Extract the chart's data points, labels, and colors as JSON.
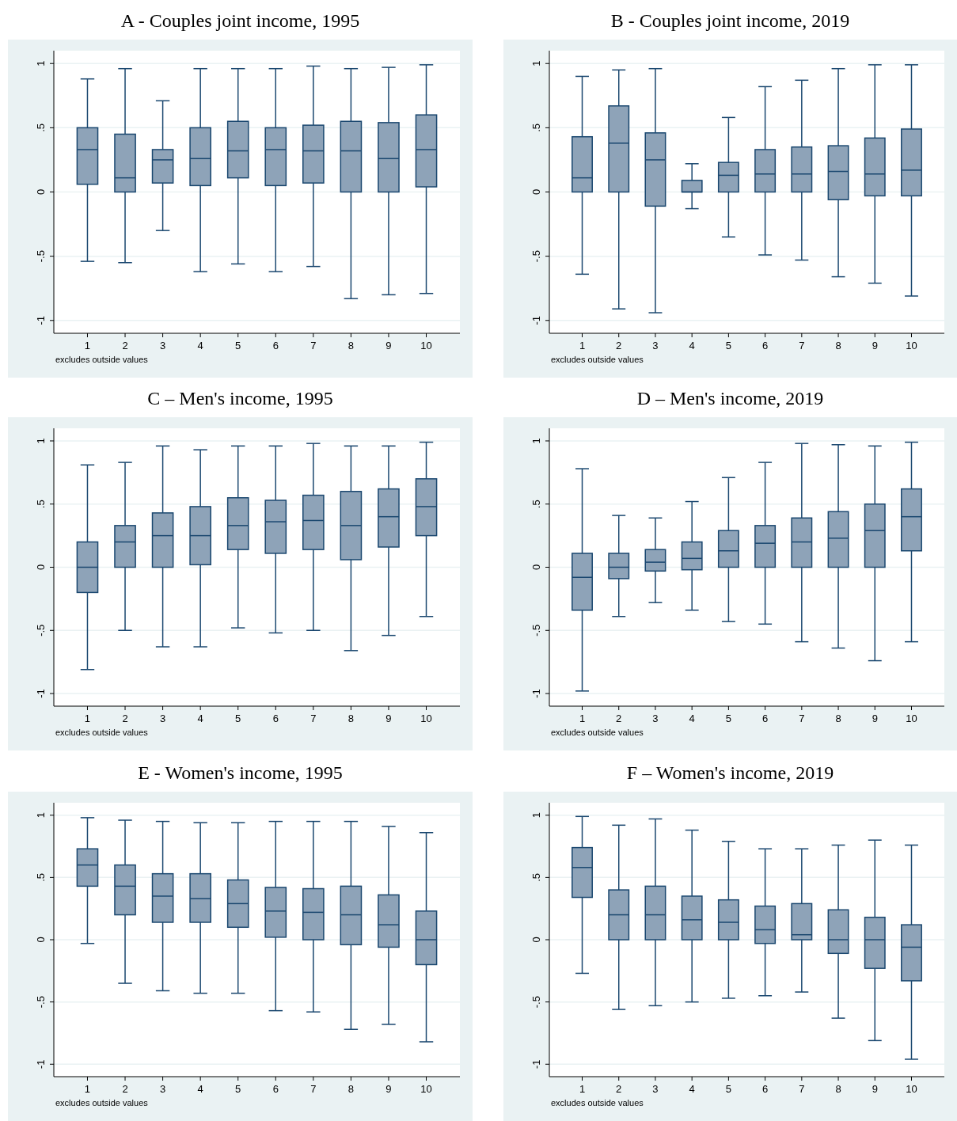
{
  "chart_data": [
    {
      "type": "box",
      "title": "A - Couples joint income, 1995",
      "categories": [
        "1",
        "2",
        "3",
        "4",
        "5",
        "6",
        "7",
        "8",
        "9",
        "10"
      ],
      "ylim": [
        -1.1,
        1.1
      ],
      "yticks": [
        {
          "value": -1,
          "label": "-1"
        },
        {
          "value": -0.5,
          "label": "-.5"
        },
        {
          "value": 0,
          "label": "0"
        },
        {
          "value": 0.5,
          "label": ".5"
        },
        {
          "value": 1,
          "label": "1"
        }
      ],
      "grid": "y",
      "annotations": [
        "excludes outside values"
      ],
      "series": [
        {
          "color": "#8ea3b8",
          "boxes": [
            {
              "low": -0.54,
              "q1": 0.06,
              "median": 0.33,
              "q3": 0.5,
              "high": 0.88
            },
            {
              "low": -0.55,
              "q1": 0,
              "median": 0.11,
              "q3": 0.45,
              "high": 0.96
            },
            {
              "low": -0.3,
              "q1": 0.07,
              "median": 0.25,
              "q3": 0.33,
              "high": 0.71
            },
            {
              "low": -0.62,
              "q1": 0.05,
              "median": 0.26,
              "q3": 0.5,
              "high": 0.96
            },
            {
              "low": -0.56,
              "q1": 0.11,
              "median": 0.32,
              "q3": 0.55,
              "high": 0.96
            },
            {
              "low": -0.62,
              "q1": 0.05,
              "median": 0.33,
              "q3": 0.5,
              "high": 0.96
            },
            {
              "low": -0.58,
              "q1": 0.07,
              "median": 0.32,
              "q3": 0.52,
              "high": 0.98
            },
            {
              "low": -0.83,
              "q1": 0,
              "median": 0.32,
              "q3": 0.55,
              "high": 0.96
            },
            {
              "low": -0.8,
              "q1": 0,
              "median": 0.26,
              "q3": 0.54,
              "high": 0.97
            },
            {
              "low": -0.79,
              "q1": 0.04,
              "median": 0.33,
              "q3": 0.6,
              "high": 0.99
            }
          ]
        }
      ]
    },
    {
      "type": "box",
      "title": "B - Couples joint income, 2019",
      "categories": [
        "1",
        "2",
        "3",
        "4",
        "5",
        "6",
        "7",
        "8",
        "9",
        "10"
      ],
      "ylim": [
        -1.1,
        1.1
      ],
      "yticks": [
        {
          "value": -1,
          "label": "-1"
        },
        {
          "value": -0.5,
          "label": "-.5"
        },
        {
          "value": 0,
          "label": "0"
        },
        {
          "value": 0.5,
          "label": ".5"
        },
        {
          "value": 1,
          "label": "1"
        }
      ],
      "grid": "y",
      "annotations": [
        "excludes outside values"
      ],
      "series": [
        {
          "color": "#8ea3b8",
          "boxes": [
            {
              "low": -0.64,
              "q1": 0,
              "median": 0.11,
              "q3": 0.43,
              "high": 0.9
            },
            {
              "low": -0.91,
              "q1": 0,
              "median": 0.38,
              "q3": 0.67,
              "high": 0.95
            },
            {
              "low": -0.94,
              "q1": -0.11,
              "median": 0.25,
              "q3": 0.46,
              "high": 0.96
            },
            {
              "low": -0.13,
              "q1": 0,
              "median": 0,
              "q3": 0.09,
              "high": 0.22
            },
            {
              "low": -0.35,
              "q1": 0,
              "median": 0.13,
              "q3": 0.23,
              "high": 0.58
            },
            {
              "low": -0.49,
              "q1": 0,
              "median": 0.14,
              "q3": 0.33,
              "high": 0.82
            },
            {
              "low": -0.53,
              "q1": 0,
              "median": 0.14,
              "q3": 0.35,
              "high": 0.87
            },
            {
              "low": -0.66,
              "q1": -0.06,
              "median": 0.16,
              "q3": 0.36,
              "high": 0.96
            },
            {
              "low": -0.71,
              "q1": -0.03,
              "median": 0.14,
              "q3": 0.42,
              "high": 0.99
            },
            {
              "low": -0.81,
              "q1": -0.03,
              "median": 0.17,
              "q3": 0.49,
              "high": 0.99
            }
          ]
        }
      ]
    },
    {
      "type": "box",
      "title": "C – Men's income, 1995",
      "categories": [
        "1",
        "2",
        "3",
        "4",
        "5",
        "6",
        "7",
        "8",
        "9",
        "10"
      ],
      "ylim": [
        -1.1,
        1.1
      ],
      "yticks": [
        {
          "value": -1,
          "label": "-1"
        },
        {
          "value": -0.5,
          "label": "-.5"
        },
        {
          "value": 0,
          "label": "0"
        },
        {
          "value": 0.5,
          "label": ".5"
        },
        {
          "value": 1,
          "label": "1"
        }
      ],
      "grid": "y",
      "annotations": [
        "excludes outside values"
      ],
      "series": [
        {
          "color": "#8ea3b8",
          "boxes": [
            {
              "low": -0.81,
              "q1": -0.2,
              "median": 0,
              "q3": 0.2,
              "high": 0.81
            },
            {
              "low": -0.5,
              "q1": 0,
              "median": 0.2,
              "q3": 0.33,
              "high": 0.83
            },
            {
              "low": -0.63,
              "q1": 0,
              "median": 0.25,
              "q3": 0.43,
              "high": 0.96
            },
            {
              "low": -0.63,
              "q1": 0.02,
              "median": 0.25,
              "q3": 0.48,
              "high": 0.93
            },
            {
              "low": -0.48,
              "q1": 0.14,
              "median": 0.33,
              "q3": 0.55,
              "high": 0.96
            },
            {
              "low": -0.52,
              "q1": 0.11,
              "median": 0.36,
              "q3": 0.53,
              "high": 0.96
            },
            {
              "low": -0.5,
              "q1": 0.14,
              "median": 0.37,
              "q3": 0.57,
              "high": 0.98
            },
            {
              "low": -0.66,
              "q1": 0.06,
              "median": 0.33,
              "q3": 0.6,
              "high": 0.96
            },
            {
              "low": -0.54,
              "q1": 0.16,
              "median": 0.4,
              "q3": 0.62,
              "high": 0.96
            },
            {
              "low": -0.39,
              "q1": 0.25,
              "median": 0.48,
              "q3": 0.7,
              "high": 0.99
            }
          ]
        }
      ]
    },
    {
      "type": "box",
      "title": "D – Men's income, 2019",
      "categories": [
        "1",
        "2",
        "3",
        "4",
        "5",
        "6",
        "7",
        "8",
        "9",
        "10"
      ],
      "ylim": [
        -1.1,
        1.1
      ],
      "yticks": [
        {
          "value": -1,
          "label": "-1"
        },
        {
          "value": -0.5,
          "label": "-.5"
        },
        {
          "value": 0,
          "label": "0"
        },
        {
          "value": 0.5,
          "label": ".5"
        },
        {
          "value": 1,
          "label": "1"
        }
      ],
      "grid": "y",
      "annotations": [
        "excludes outside values"
      ],
      "series": [
        {
          "color": "#8ea3b8",
          "boxes": [
            {
              "low": -0.98,
              "q1": -0.34,
              "median": -0.08,
              "q3": 0.11,
              "high": 0.78
            },
            {
              "low": -0.39,
              "q1": -0.09,
              "median": 0,
              "q3": 0.11,
              "high": 0.41
            },
            {
              "low": -0.28,
              "q1": -0.03,
              "median": 0.04,
              "q3": 0.14,
              "high": 0.39
            },
            {
              "low": -0.34,
              "q1": -0.02,
              "median": 0.07,
              "q3": 0.2,
              "high": 0.52
            },
            {
              "low": -0.43,
              "q1": 0,
              "median": 0.13,
              "q3": 0.29,
              "high": 0.71
            },
            {
              "low": -0.45,
              "q1": 0,
              "median": 0.19,
              "q3": 0.33,
              "high": 0.83
            },
            {
              "low": -0.59,
              "q1": 0,
              "median": 0.2,
              "q3": 0.39,
              "high": 0.98
            },
            {
              "low": -0.64,
              "q1": 0,
              "median": 0.23,
              "q3": 0.44,
              "high": 0.97
            },
            {
              "low": -0.74,
              "q1": 0,
              "median": 0.29,
              "q3": 0.5,
              "high": 0.96
            },
            {
              "low": -0.59,
              "q1": 0.13,
              "median": 0.4,
              "q3": 0.62,
              "high": 0.99
            }
          ]
        }
      ]
    },
    {
      "type": "box",
      "title": "E - Women's income, 1995",
      "categories": [
        "1",
        "2",
        "3",
        "4",
        "5",
        "6",
        "7",
        "8",
        "9",
        "10"
      ],
      "ylim": [
        -1.1,
        1.1
      ],
      "yticks": [
        {
          "value": -1,
          "label": "-1"
        },
        {
          "value": -0.5,
          "label": "-.5"
        },
        {
          "value": 0,
          "label": "0"
        },
        {
          "value": 0.5,
          "label": ".5"
        },
        {
          "value": 1,
          "label": "1"
        }
      ],
      "grid": "y",
      "annotations": [
        "excludes outside values"
      ],
      "series": [
        {
          "color": "#8ea3b8",
          "boxes": [
            {
              "low": -0.03,
              "q1": 0.43,
              "median": 0.6,
              "q3": 0.73,
              "high": 0.98
            },
            {
              "low": -0.35,
              "q1": 0.2,
              "median": 0.43,
              "q3": 0.6,
              "high": 0.96
            },
            {
              "low": -0.41,
              "q1": 0.14,
              "median": 0.35,
              "q3": 0.53,
              "high": 0.95
            },
            {
              "low": -0.43,
              "q1": 0.14,
              "median": 0.33,
              "q3": 0.53,
              "high": 0.94
            },
            {
              "low": -0.43,
              "q1": 0.1,
              "median": 0.29,
              "q3": 0.48,
              "high": 0.94
            },
            {
              "low": -0.57,
              "q1": 0.02,
              "median": 0.23,
              "q3": 0.42,
              "high": 0.95
            },
            {
              "low": -0.58,
              "q1": 0,
              "median": 0.22,
              "q3": 0.41,
              "high": 0.95
            },
            {
              "low": -0.72,
              "q1": -0.04,
              "median": 0.2,
              "q3": 0.43,
              "high": 0.95
            },
            {
              "low": -0.68,
              "q1": -0.06,
              "median": 0.12,
              "q3": 0.36,
              "high": 0.91
            },
            {
              "low": -0.82,
              "q1": -0.2,
              "median": 0,
              "q3": 0.23,
              "high": 0.86
            }
          ]
        }
      ]
    },
    {
      "type": "box",
      "title": "F – Women's income, 2019",
      "categories": [
        "1",
        "2",
        "3",
        "4",
        "5",
        "6",
        "7",
        "8",
        "9",
        "10"
      ],
      "ylim": [
        -1.1,
        1.1
      ],
      "yticks": [
        {
          "value": -1,
          "label": "-1"
        },
        {
          "value": -0.5,
          "label": "-.5"
        },
        {
          "value": 0,
          "label": "0"
        },
        {
          "value": 0.5,
          "label": ".5"
        },
        {
          "value": 1,
          "label": "1"
        }
      ],
      "grid": "y",
      "annotations": [
        "excludes outside values"
      ],
      "series": [
        {
          "color": "#8ea3b8",
          "boxes": [
            {
              "low": -0.27,
              "q1": 0.34,
              "median": 0.58,
              "q3": 0.74,
              "high": 0.99
            },
            {
              "low": -0.56,
              "q1": 0,
              "median": 0.2,
              "q3": 0.4,
              "high": 0.92
            },
            {
              "low": -0.53,
              "q1": 0,
              "median": 0.2,
              "q3": 0.43,
              "high": 0.97
            },
            {
              "low": -0.5,
              "q1": 0,
              "median": 0.16,
              "q3": 0.35,
              "high": 0.88
            },
            {
              "low": -0.47,
              "q1": 0,
              "median": 0.14,
              "q3": 0.32,
              "high": 0.79
            },
            {
              "low": -0.45,
              "q1": -0.03,
              "median": 0.08,
              "q3": 0.27,
              "high": 0.73
            },
            {
              "low": -0.42,
              "q1": 0,
              "median": 0.04,
              "q3": 0.29,
              "high": 0.73
            },
            {
              "low": -0.63,
              "q1": -0.11,
              "median": 0,
              "q3": 0.24,
              "high": 0.76
            },
            {
              "low": -0.81,
              "q1": -0.23,
              "median": 0,
              "q3": 0.18,
              "high": 0.8
            },
            {
              "low": -0.96,
              "q1": -0.33,
              "median": -0.06,
              "q3": 0.12,
              "high": 0.76
            }
          ]
        }
      ]
    }
  ]
}
